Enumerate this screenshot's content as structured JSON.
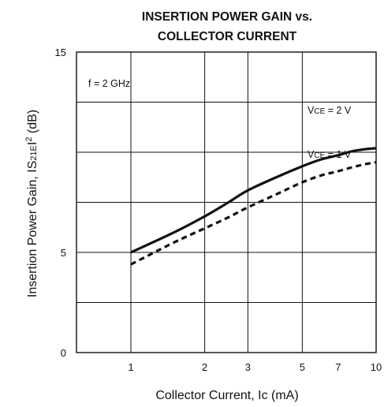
{
  "chart_data": {
    "type": "line",
    "title_lines": [
      "INSERTION POWER GAIN vs.",
      "COLLECTOR CURRENT"
    ],
    "xlabel": "Collector Current, Ic (mA)",
    "ylabel_parts": [
      "Insertion Power Gain,  IS",
      "21E",
      "I",
      "2",
      " (dB)"
    ],
    "x_scale": "log",
    "xlim": [
      0.6,
      10
    ],
    "ylim": [
      0,
      15
    ],
    "x_ticks": [
      1,
      2,
      3,
      5,
      7,
      10
    ],
    "x_tick_labels": [
      "1",
      "2",
      "3",
      "5",
      "7",
      "10"
    ],
    "y_ticks": [
      0,
      5,
      15
    ],
    "y_tick_labels": [
      "0",
      "5",
      "15"
    ],
    "y_gridlines": [
      2.5,
      5,
      7.5,
      10,
      12.5
    ],
    "x_gridlines": [
      1,
      2,
      3,
      5,
      10
    ],
    "grid": true,
    "annotation": "f = 2 GHz",
    "series": [
      {
        "name_parts": [
          "V",
          "CE",
          " = 2 V"
        ],
        "style": "solid",
        "x": [
          1,
          1.5,
          2,
          2.5,
          3,
          4,
          5,
          6,
          7,
          8,
          9,
          10
        ],
        "y": [
          5.0,
          6.0,
          6.8,
          7.5,
          8.1,
          8.8,
          9.3,
          9.65,
          9.85,
          10.05,
          10.15,
          10.2
        ]
      },
      {
        "name_parts": [
          "V",
          "CE",
          " = 1 V"
        ],
        "style": "dashed",
        "x": [
          1,
          1.5,
          2,
          2.5,
          3,
          4,
          5,
          6,
          7,
          8,
          9,
          10
        ],
        "y": [
          4.4,
          5.5,
          6.2,
          6.75,
          7.25,
          7.95,
          8.5,
          8.85,
          9.05,
          9.25,
          9.4,
          9.5
        ]
      }
    ]
  }
}
